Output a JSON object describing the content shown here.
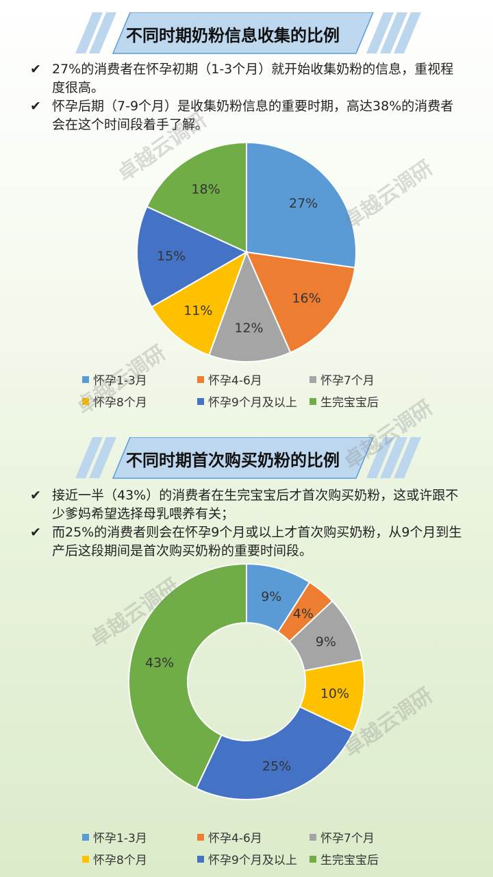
{
  "watermark": "卓越云调研",
  "sections": [
    {
      "title": "不同时期奶粉信息收集的比例",
      "bullets": [
        "27%的消费者在怀孕初期（1-3个月）就开始收集奶粉的信息，重视程度很高。",
        "怀孕后期（7-9个月）是收集奶粉信息的重要时期，高达38%的消费者会在这个时间段着手了解。"
      ]
    },
    {
      "title": "不同时期首次购买奶粉的比例",
      "bullets": [
        "接近一半（43%）的消费者在生完宝宝后才首次购买奶粉，这或许跟不少爹妈希望选择母乳喂养有关；",
        "而25%的消费者则会在怀孕9个月或以上才首次购买奶粉，从9个月到生产后这段期间是首次购买奶粉的重要时间段。"
      ]
    }
  ],
  "colors": [
    "#5b9bd5",
    "#ed7d31",
    "#a5a5a5",
    "#ffc000",
    "#4472c4",
    "#70ad47"
  ],
  "chart_data": [
    {
      "type": "pie",
      "categories": [
        "怀孕1-3月",
        "怀孕4-6月",
        "怀孕7个月",
        "怀孕8个月",
        "怀孕9个月及以上",
        "生完宝宝后"
      ],
      "values": [
        27,
        16,
        12,
        11,
        15,
        18
      ],
      "labels": [
        "27%",
        "16%",
        "12%",
        "11%",
        "15%",
        "18%"
      ],
      "legend_position": "bottom"
    },
    {
      "type": "pie",
      "variant": "donut",
      "categories": [
        "怀孕1-3月",
        "怀孕4-6月",
        "怀孕7个月",
        "怀孕8个月",
        "怀孕9个月及以上",
        "生完宝宝后"
      ],
      "values": [
        9,
        4,
        9,
        10,
        25,
        43
      ],
      "labels": [
        "9%",
        "4%",
        "9%",
        "10%",
        "25%",
        "43%"
      ],
      "legend_position": "bottom"
    }
  ]
}
